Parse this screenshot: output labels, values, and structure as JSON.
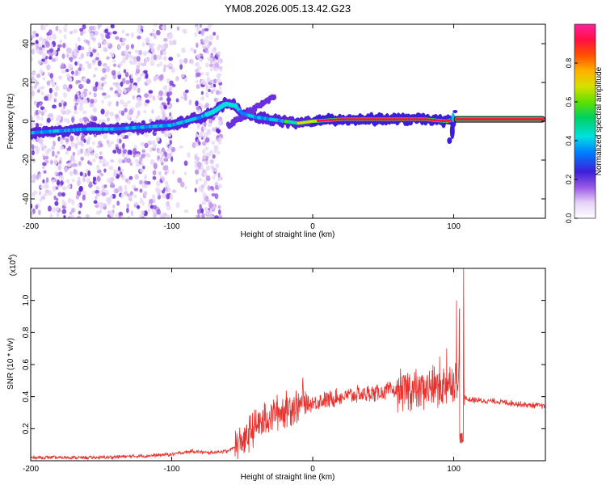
{
  "title": "YM08.2026.005.13.42.G23",
  "chart_data": [
    {
      "type": "heatmap",
      "xlabel": "Height of straight line (km)",
      "ylabel": "Frequency (Hz)",
      "xlim": [
        -200,
        165
      ],
      "ylim": [
        -50,
        50
      ],
      "xticks": [
        -200,
        -100,
        0,
        100
      ],
      "yticks": [
        -40,
        -20,
        0,
        20,
        40
      ],
      "colorbar": {
        "label": "Normalized spectral amplitude",
        "range": [
          0,
          1
        ],
        "ticks": [
          0.0,
          0.2,
          0.4,
          0.6,
          0.8
        ]
      },
      "ridge": [
        {
          "x": -200,
          "y": -6
        },
        {
          "x": -180,
          "y": -5
        },
        {
          "x": -160,
          "y": -4
        },
        {
          "x": -140,
          "y": -4
        },
        {
          "x": -120,
          "y": -3
        },
        {
          "x": -100,
          "y": -2
        },
        {
          "x": -90,
          "y": 0
        },
        {
          "x": -80,
          "y": 2
        },
        {
          "x": -70,
          "y": 5
        },
        {
          "x": -62,
          "y": 9
        },
        {
          "x": -55,
          "y": 8
        },
        {
          "x": -50,
          "y": 4
        },
        {
          "x": -40,
          "y": 2
        },
        {
          "x": -30,
          "y": 1
        },
        {
          "x": -20,
          "y": 0
        },
        {
          "x": -10,
          "y": -1
        },
        {
          "x": 0,
          "y": 0
        },
        {
          "x": 20,
          "y": 1
        },
        {
          "x": 50,
          "y": 1
        },
        {
          "x": 80,
          "y": 1
        },
        {
          "x": 95,
          "y": 0
        },
        {
          "x": 100,
          "y": 1
        },
        {
          "x": 165,
          "y": 1
        }
      ]
    },
    {
      "type": "line",
      "xlabel": "Height of straight line (km)",
      "ylabel": "SNR (10 * v/v)",
      "yscale_label": "(x10",
      "yscale_exp": "4",
      "yscale_close": ")",
      "xlim": [
        -200,
        165
      ],
      "ylim": [
        0,
        1.2
      ],
      "xticks": [
        -200,
        -100,
        0,
        100
      ],
      "yticks": [
        0.2,
        0.4,
        0.6,
        0.8,
        1.0
      ],
      "ytick_labels": [
        "0.2",
        "0.4",
        "0.6",
        "0.8",
        "1.0"
      ],
      "series_color": "#e8322e",
      "envelope": [
        {
          "x": -200,
          "y": 0.02
        },
        {
          "x": -150,
          "y": 0.02
        },
        {
          "x": -120,
          "y": 0.03
        },
        {
          "x": -100,
          "y": 0.04
        },
        {
          "x": -85,
          "y": 0.06
        },
        {
          "x": -75,
          "y": 0.05
        },
        {
          "x": -60,
          "y": 0.06
        },
        {
          "x": -50,
          "y": 0.12
        },
        {
          "x": -40,
          "y": 0.22
        },
        {
          "x": -30,
          "y": 0.28
        },
        {
          "x": -20,
          "y": 0.32
        },
        {
          "x": -10,
          "y": 0.35
        },
        {
          "x": 0,
          "y": 0.36
        },
        {
          "x": 20,
          "y": 0.4
        },
        {
          "x": 40,
          "y": 0.42
        },
        {
          "x": 60,
          "y": 0.44
        },
        {
          "x": 80,
          "y": 0.45
        },
        {
          "x": 95,
          "y": 0.47
        },
        {
          "x": 100,
          "y": 0.5
        },
        {
          "x": 104,
          "y": 0.55
        },
        {
          "x": 108,
          "y": 0.4
        },
        {
          "x": 110,
          "y": 0.38
        },
        {
          "x": 130,
          "y": 0.37
        },
        {
          "x": 150,
          "y": 0.35
        },
        {
          "x": 165,
          "y": 0.34
        }
      ],
      "peaks": [
        {
          "x": 102,
          "y": 1.0
        },
        {
          "x": 104,
          "y": 0.95
        },
        {
          "x": 107,
          "y": 1.2
        },
        {
          "x": 95,
          "y": 0.7
        },
        {
          "x": -7,
          "y": 0.52
        },
        {
          "x": 90,
          "y": 0.65
        }
      ]
    }
  ]
}
